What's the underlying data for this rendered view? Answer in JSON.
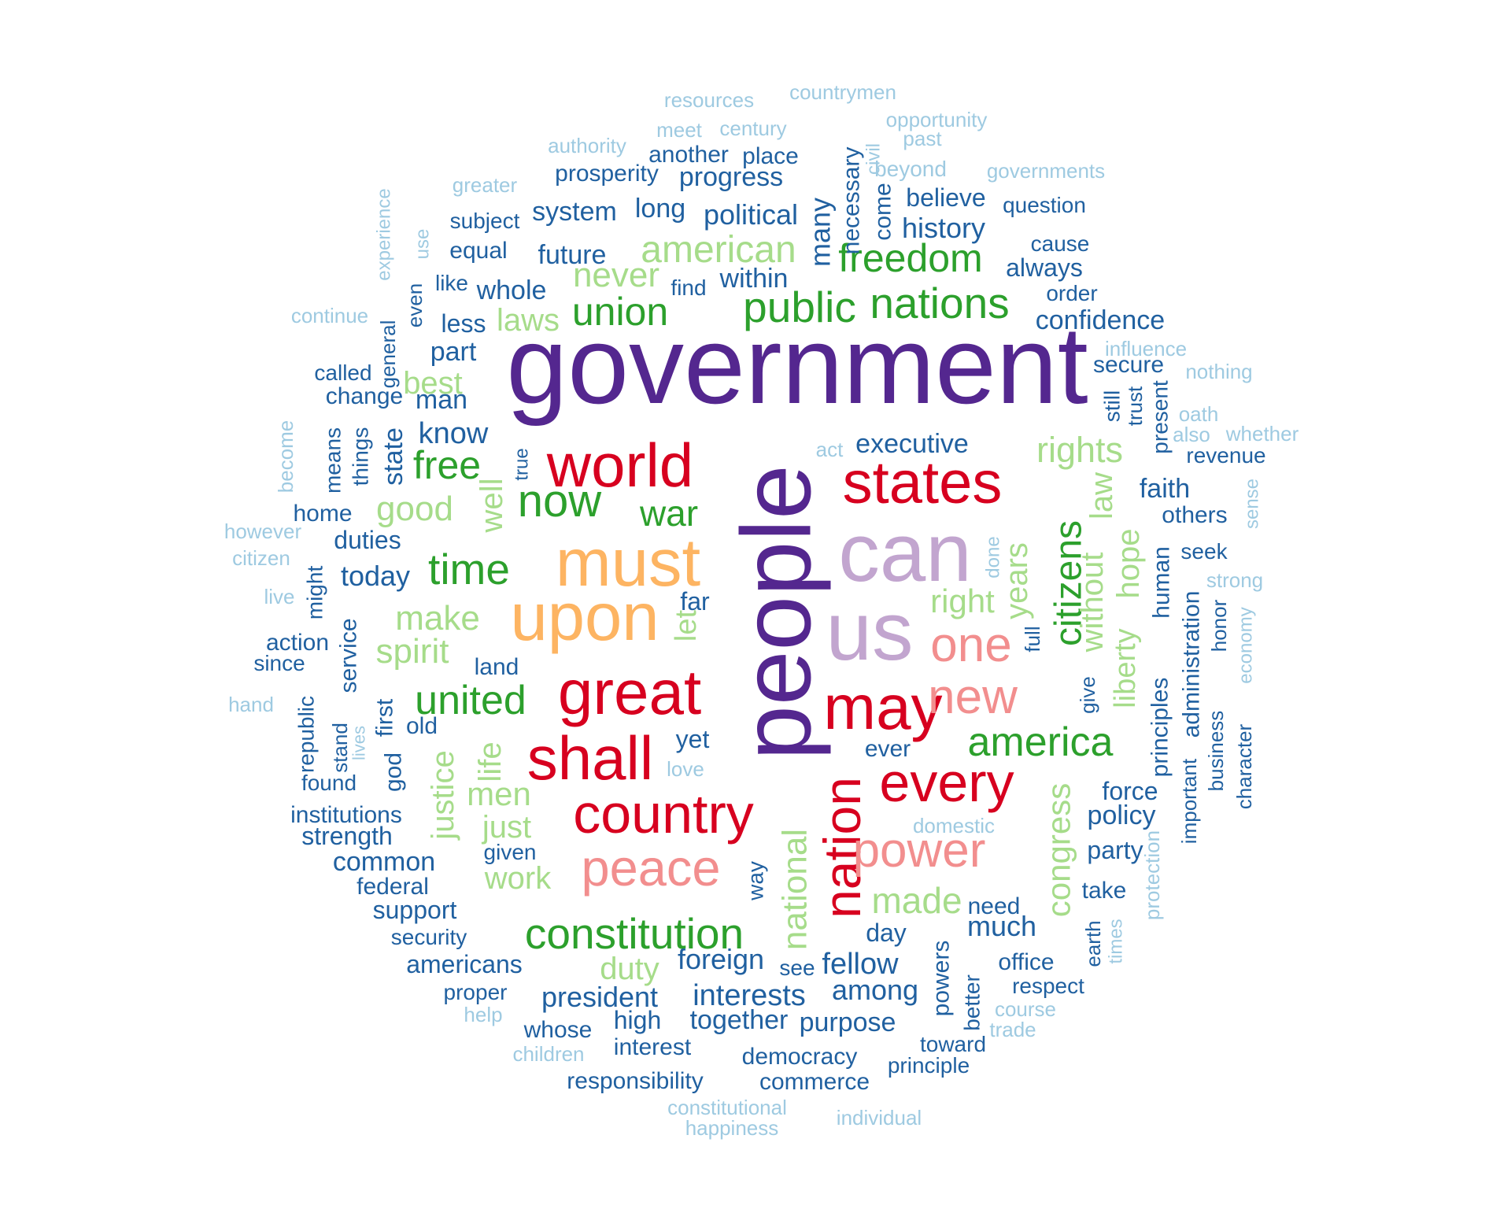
{
  "colors": {
    "c1": "#54278f",
    "c2": "#c2a5cf",
    "c3": "#d7001f",
    "c4": "#f28e8e",
    "c5": "#fdb462",
    "c6": "#2ca02c",
    "c7": "#a6dc8a",
    "c8": "#2060a0",
    "c9": "#9ecae1"
  },
  "words": [
    "government",
    "people",
    "can",
    "us",
    "must",
    "upon",
    "world",
    "states",
    "great",
    "shall",
    "may",
    "country",
    "nation",
    "every",
    "one",
    "peace",
    "power",
    "new",
    "constitution",
    "time",
    "nations",
    "public",
    "union",
    "freedom",
    "united",
    "america",
    "now",
    "war",
    "free",
    "citizens",
    "american",
    "rights",
    "laws",
    "good",
    "make",
    "spirit",
    "right",
    "years",
    "made",
    "men",
    "life",
    "justice",
    "just",
    "work",
    "duty",
    "national",
    "congress",
    "without",
    "law",
    "liberty",
    "hope",
    "let",
    "never",
    "best",
    "well",
    "years",
    "resources",
    "countrymen",
    "meet",
    "century",
    "opportunity",
    "past",
    "civil",
    "authority",
    "another",
    "place",
    "necessary",
    "prosperity",
    "progress",
    "many",
    "come",
    "beyond",
    "governments",
    "greater",
    "system",
    "long",
    "political",
    "believe",
    "question",
    "subject",
    "history",
    "experience",
    "use",
    "equal",
    "future",
    "cause",
    "always",
    "like",
    "whole",
    "find",
    "within",
    "order",
    "even",
    "continue",
    "less",
    "confidence",
    "general",
    "part",
    "influence",
    "secure",
    "nothing",
    "called",
    "change",
    "man",
    "still",
    "trust",
    "present",
    "oath",
    "know",
    "also",
    "whether",
    "act",
    "executive",
    "revenue",
    "state",
    "things",
    "means",
    "become",
    "true",
    "faith",
    "home",
    "others",
    "sense",
    "duties",
    "however",
    "seek",
    "citizen",
    "today",
    "far",
    "done",
    "human",
    "strong",
    "live",
    "might",
    "action",
    "service",
    "administration",
    "honor",
    "economy",
    "since",
    "land",
    "full",
    "principles",
    "hand",
    "republic",
    "first",
    "old",
    "give",
    "business",
    "stand",
    "lives",
    "yet",
    "ever",
    "character",
    "god",
    "found",
    "love",
    "important",
    "institutions",
    "force",
    "policy",
    "strength",
    "domestic",
    "common",
    "given",
    "party",
    "federal",
    "way",
    "protection",
    "take",
    "support",
    "need",
    "day",
    "much",
    "times",
    "security",
    "earth",
    "americans",
    "foreign",
    "see",
    "powers",
    "office",
    "fellow",
    "among",
    "proper",
    "respect",
    "president",
    "interests",
    "better",
    "help",
    "course",
    "whose",
    "high",
    "together",
    "purpose",
    "trade",
    "toward",
    "children",
    "interest",
    "democracy",
    "principle",
    "responsibility",
    "commerce",
    "constitutional",
    "happiness",
    "individual"
  ]
}
